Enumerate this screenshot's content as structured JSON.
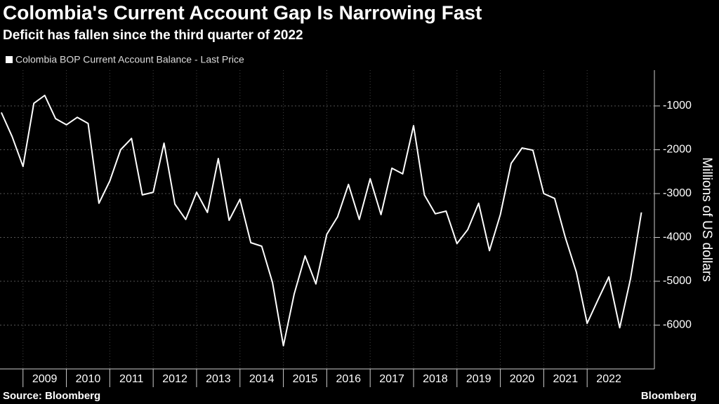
{
  "chart_data": {
    "type": "line",
    "title": "Colombia's Current Account Gap Is Narrowing Fast",
    "subtitle": "Deficit has fallen since the third quarter of 2022",
    "y_axis_label": "Millions of US dollars",
    "source": "Source: Bloomberg",
    "brand": "Bloomberg",
    "grid": true,
    "x": [
      2008.5,
      2008.75,
      2009,
      2009.25,
      2009.5,
      2009.75,
      2010,
      2010.25,
      2010.5,
      2010.75,
      2011,
      2011.25,
      2011.5,
      2011.75,
      2012,
      2012.25,
      2012.5,
      2012.75,
      2013,
      2013.25,
      2013.5,
      2013.75,
      2014,
      2014.25,
      2014.5,
      2014.75,
      2015,
      2015.25,
      2015.5,
      2015.75,
      2016,
      2016.25,
      2016.5,
      2016.75,
      2017,
      2017.25,
      2017.5,
      2017.75,
      2018,
      2018.25,
      2018.5,
      2018.75,
      2019,
      2019.25,
      2019.5,
      2019.75,
      2020,
      2020.25,
      2020.5,
      2020.75,
      2021,
      2021.25,
      2021.5,
      2021.75,
      2022,
      2022.25,
      2022.5,
      2022.75,
      2023,
      2023.25
    ],
    "xlim": [
      2008.47,
      2023.55
    ],
    "xticks": [
      {
        "value": 2009,
        "label": "2009"
      },
      {
        "value": 2010,
        "label": "2010"
      },
      {
        "value": 2011,
        "label": "2011"
      },
      {
        "value": 2012,
        "label": "2012"
      },
      {
        "value": 2013,
        "label": "2013"
      },
      {
        "value": 2014,
        "label": "2014"
      },
      {
        "value": 2015,
        "label": "2015"
      },
      {
        "value": 2016,
        "label": "2016"
      },
      {
        "value": 2017,
        "label": "2017"
      },
      {
        "value": 2018,
        "label": "2018"
      },
      {
        "value": 2019,
        "label": "2019"
      },
      {
        "value": 2020,
        "label": "2020"
      },
      {
        "value": 2021,
        "label": "2021"
      },
      {
        "value": 2022,
        "label": "2022"
      }
    ],
    "ylim": [
      -7000,
      -184
    ],
    "yticks": [
      -6000,
      -5000,
      -4000,
      -3000,
      -2000,
      -1000
    ],
    "series": [
      {
        "name": "Colombia BOP Current Account Balance - Last Price",
        "color": "#ffffff",
        "values": [
          -1150,
          -1700,
          -2380,
          -940,
          -760,
          -1290,
          -1430,
          -1260,
          -1400,
          -3220,
          -2710,
          -2000,
          -1740,
          -3030,
          -2970,
          -1850,
          -3240,
          -3590,
          -2970,
          -3430,
          -2200,
          -3610,
          -3130,
          -4120,
          -4200,
          -5030,
          -6470,
          -5290,
          -4420,
          -5060,
          -3930,
          -3530,
          -2790,
          -3590,
          -2660,
          -3480,
          -2420,
          -2550,
          -1450,
          -3030,
          -3460,
          -3400,
          -4140,
          -3820,
          -3220,
          -4300,
          -3480,
          -2310,
          -1960,
          -2010,
          -3000,
          -3110,
          -4010,
          -4790,
          -5960,
          -5420,
          -4900,
          -6060,
          -4940,
          -3430
        ]
      }
    ]
  }
}
